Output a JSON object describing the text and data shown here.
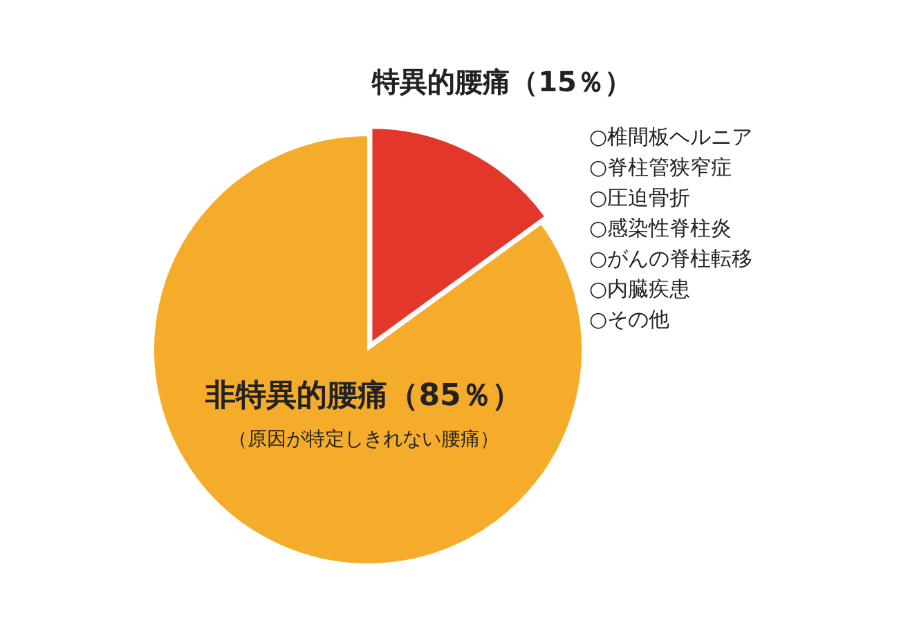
{
  "chart_data": {
    "type": "pie",
    "categories": [
      "特異的腰痛（15％）",
      "非特異的腰痛（85％）"
    ],
    "values": [
      15,
      85
    ],
    "colors": [
      "#e2372a",
      "#f6ac2b"
    ],
    "annotations": [
      "（原因が特定しきれない腰痛）",
      "○椎間板ヘルニア",
      "○脊柱管狭窄症",
      "○圧迫骨折",
      "○感染性脊柱炎",
      "○がんの脊柱転移",
      "○内臓疾患",
      "○その他"
    ]
  }
}
